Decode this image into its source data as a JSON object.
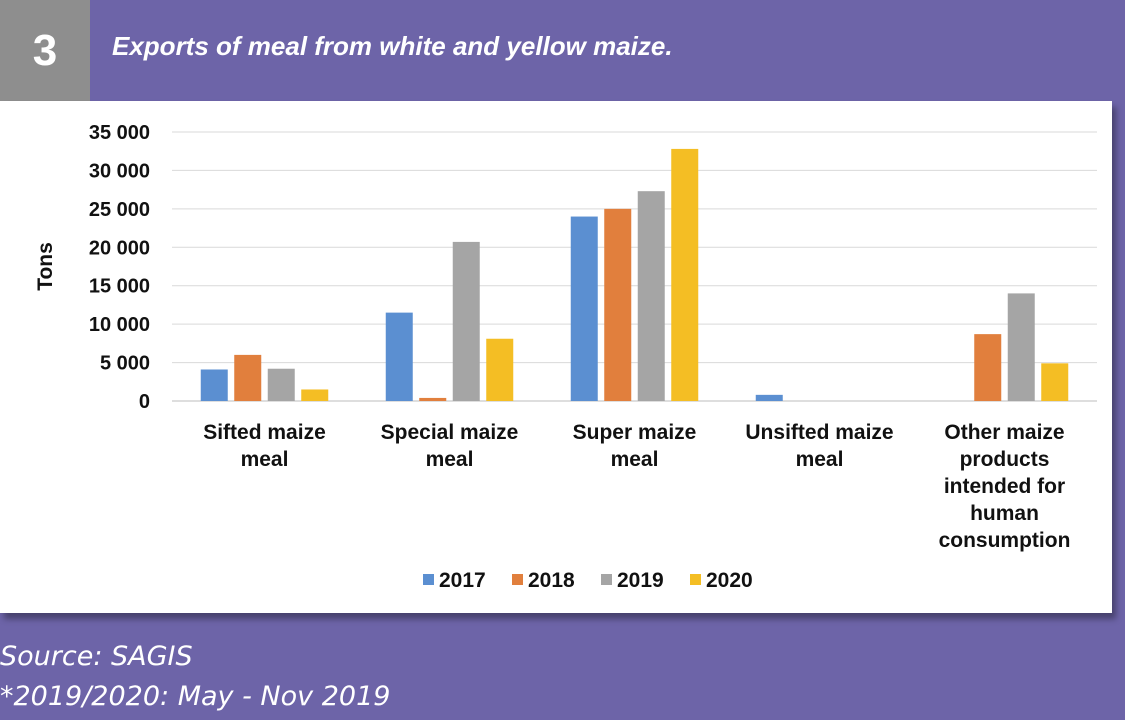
{
  "figure": {
    "number": "3",
    "title": "Exports of meal from white and yellow maize."
  },
  "notes": {
    "source": "Source: SAGIS",
    "period": "*2019/2020: May - Nov 2019"
  },
  "colors": {
    "background": "#6d64a8",
    "badge": "#8e8e8e",
    "2017": "#5b8fd1",
    "2018": "#e17f3d",
    "2019": "#a5a5a5",
    "2020": "#f4be24"
  },
  "chart_data": {
    "type": "bar",
    "title": "",
    "xlabel": "",
    "ylabel": "Tons",
    "ylim": [
      0,
      35000
    ],
    "yticks": [
      0,
      5000,
      10000,
      15000,
      20000,
      25000,
      30000,
      35000
    ],
    "ytick_labels": [
      "0",
      "5 000",
      "10 000",
      "15 000",
      "20 000",
      "25 000",
      "30 000",
      "35 000"
    ],
    "grid": true,
    "legend_position": "bottom",
    "categories": [
      [
        "Sifted maize",
        "meal"
      ],
      [
        "Special maize",
        "meal"
      ],
      [
        "Super maize",
        "meal"
      ],
      [
        "Unsifted maize",
        "meal"
      ],
      [
        "Other maize",
        "products",
        "intended for",
        "human",
        "consumption"
      ]
    ],
    "series": [
      {
        "name": "2017",
        "values": [
          4100,
          11500,
          24000,
          800,
          0
        ]
      },
      {
        "name": "2018",
        "values": [
          6000,
          400,
          25000,
          0,
          8700
        ]
      },
      {
        "name": "2019",
        "values": [
          4200,
          20700,
          27300,
          0,
          14000
        ]
      },
      {
        "name": "2020",
        "values": [
          1500,
          8100,
          32800,
          0,
          4900
        ]
      }
    ]
  }
}
